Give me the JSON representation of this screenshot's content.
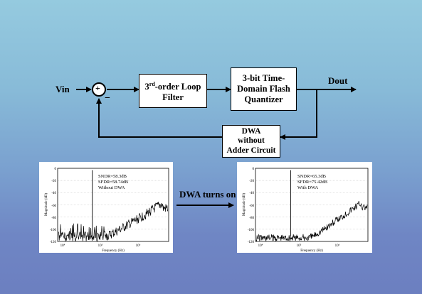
{
  "diagram": {
    "input_label": "Vin",
    "output_label": "Dout",
    "sum_plus": "+",
    "sum_minus": "−",
    "loop_filter": {
      "line1_base": "3",
      "line1_sup": "rd",
      "line1_rest": "-order Loop",
      "line2": "Filter"
    },
    "quantizer": {
      "line1": "3-bit Time-",
      "line2": "Domain Flash",
      "line3": "Quantizer"
    },
    "dwa": {
      "line1": "DWA",
      "line2": "without",
      "line3": "Adder Circuit"
    },
    "transition_label": "DWA turns on"
  },
  "spectra": [
    {
      "annot1": "SNDR=58.3dB",
      "annot2": "SFDR=58.74dB",
      "annot3": "Without DWA",
      "ylabel": "Magnitude (dB)",
      "xlabel": "Frequency (Hz)",
      "yticks": [
        "0",
        "-20",
        "-40",
        "-60",
        "-80",
        "-100",
        "-120"
      ],
      "xticks": [
        "10⁴",
        "10⁵",
        "10⁶"
      ]
    },
    {
      "annot1": "SNDR=65.3dB",
      "annot2": "SFDR=75.42dB",
      "annot3": "With DWA",
      "ylabel": "Magnitude (dB)",
      "xlabel": "Frequency (Hz)",
      "yticks": [
        "0",
        "-20",
        "-40",
        "-60",
        "-80",
        "-100",
        "-120"
      ],
      "xticks": [
        "10⁴",
        "10⁵",
        "10⁶"
      ]
    }
  ]
}
